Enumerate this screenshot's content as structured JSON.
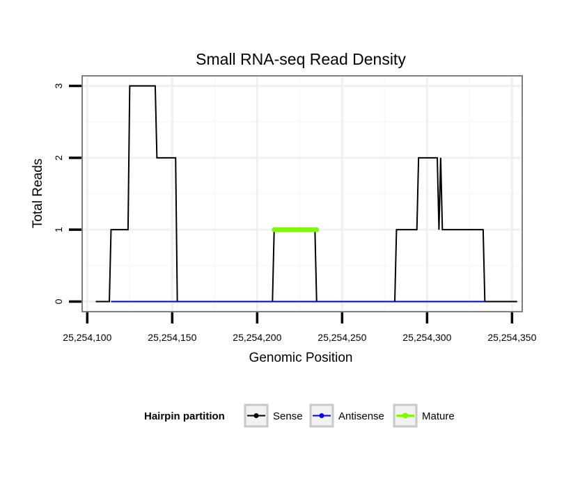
{
  "chart_data": {
    "type": "line",
    "title": "Small RNA-seq Read Density",
    "xlabel": "Genomic Position",
    "ylabel": "Total Reads",
    "xlim": [
      25254097,
      25254356
    ],
    "ylim": [
      -0.14,
      3.14
    ],
    "x_ticks": [
      {
        "value": 25254100,
        "label": "25,254,100"
      },
      {
        "value": 25254150,
        "label": "25,254,150"
      },
      {
        "value": 25254200,
        "label": "25,254,200"
      },
      {
        "value": 25254250,
        "label": "25,254,250"
      },
      {
        "value": 25254300,
        "label": "25,254,300"
      },
      {
        "value": 25254350,
        "label": "25,254,350"
      }
    ],
    "y_ticks": [
      {
        "value": 0,
        "label": "0"
      },
      {
        "value": 1,
        "label": "1"
      },
      {
        "value": 2,
        "label": "2"
      },
      {
        "value": 3,
        "label": "3"
      }
    ],
    "grid": true,
    "legend": {
      "title": "Hairpin partition",
      "position": "bottom"
    },
    "series": [
      {
        "name": "Sense",
        "color": "#000000",
        "points": [
          [
            25254105,
            0
          ],
          [
            25254113,
            0
          ],
          [
            25254114,
            1
          ],
          [
            25254124,
            1
          ],
          [
            25254125,
            3
          ],
          [
            25254140,
            3
          ],
          [
            25254141,
            2
          ],
          [
            25254152,
            2
          ],
          [
            25254153,
            0
          ],
          [
            25254209,
            0
          ],
          [
            25254210,
            1
          ],
          [
            25254234,
            1
          ],
          [
            25254235,
            0
          ],
          [
            25254281,
            0
          ],
          [
            25254282,
            1
          ],
          [
            25254294,
            1
          ],
          [
            25254295,
            2
          ],
          [
            25254306,
            2
          ],
          [
            25254307,
            1
          ],
          [
            25254308,
            2
          ],
          [
            25254309,
            1
          ],
          [
            25254333,
            1
          ],
          [
            25254334,
            0
          ],
          [
            25254353,
            0
          ]
        ]
      },
      {
        "name": "Antisense",
        "color": "#0000ff",
        "points": [
          [
            25254114,
            0
          ],
          [
            25254153,
            0
          ],
          [
            25254210,
            0
          ],
          [
            25254235,
            0
          ],
          [
            25254282,
            0
          ],
          [
            25254334,
            0
          ]
        ]
      },
      {
        "name": "Mature",
        "color": "#7cfc00",
        "points": [
          [
            25254210,
            1
          ],
          [
            25254235,
            1
          ]
        ]
      }
    ]
  }
}
